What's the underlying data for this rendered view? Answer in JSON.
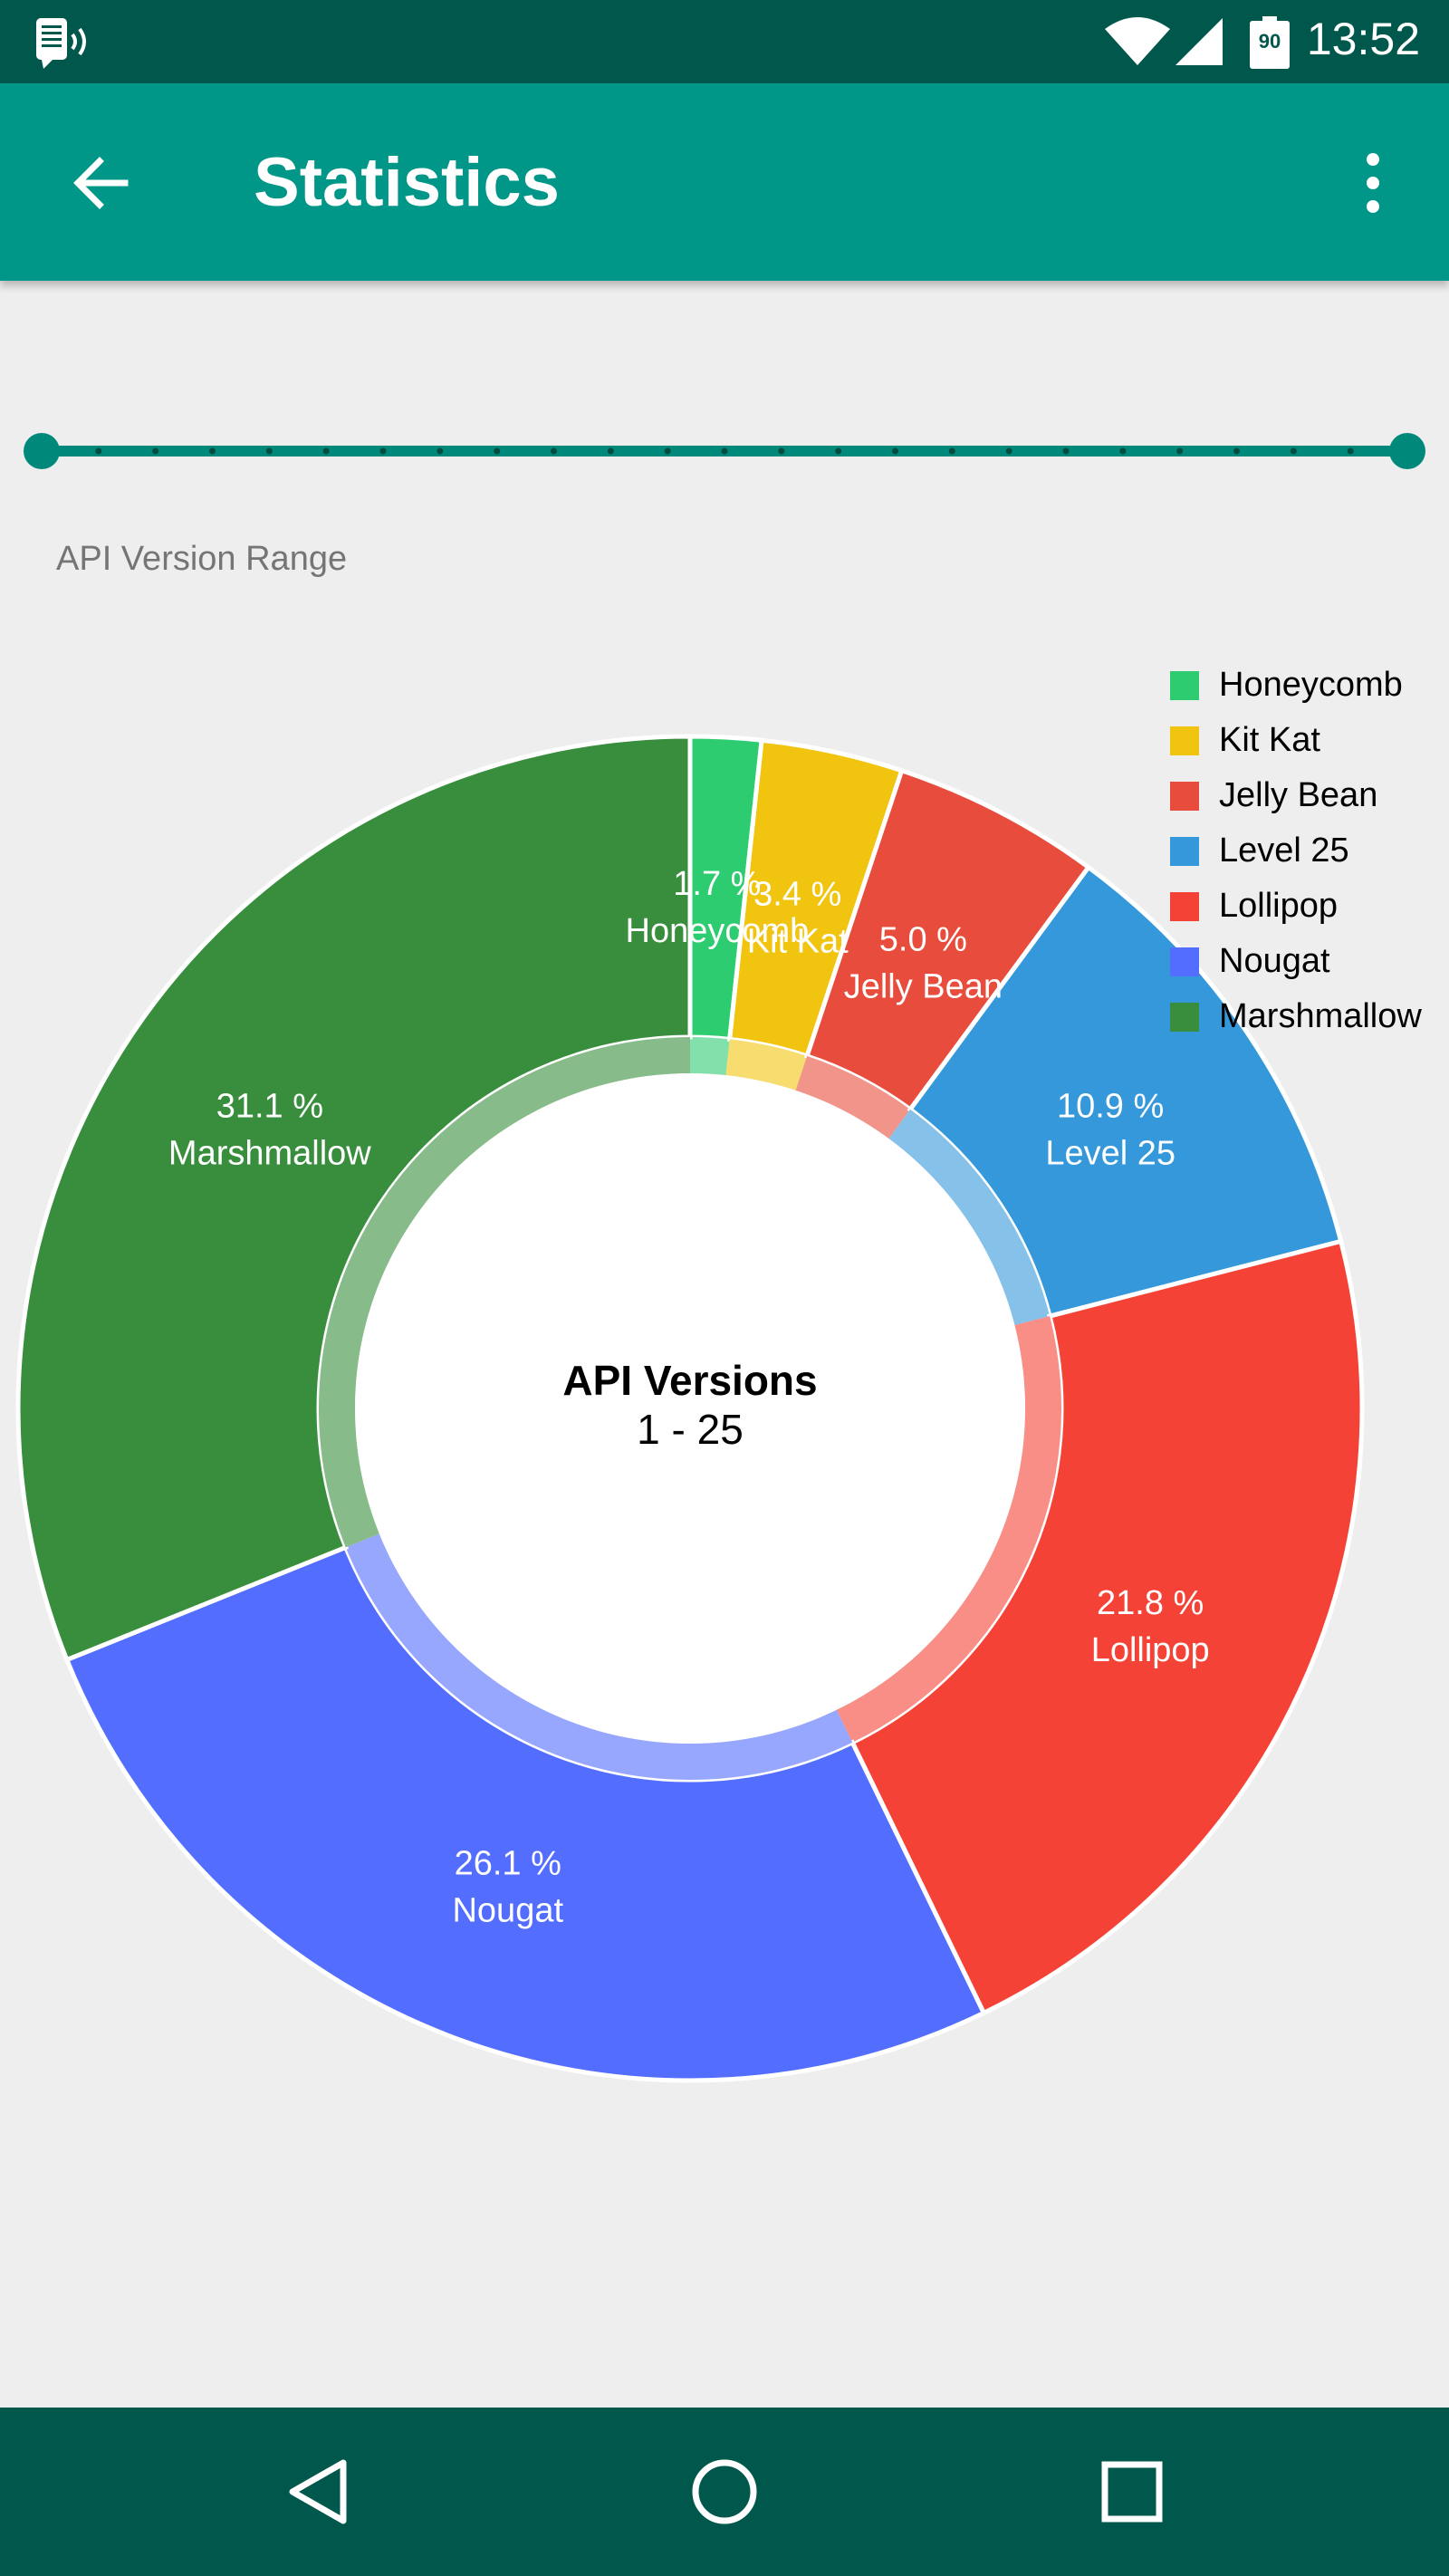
{
  "status_bar": {
    "time": "13:52",
    "battery_level": "90",
    "icons": [
      "notification-icon",
      "wifi-icon",
      "signal-icon",
      "battery-icon"
    ]
  },
  "app_bar": {
    "title": "Statistics",
    "back_icon": "arrow-left-icon",
    "menu_icon": "more-vert-icon",
    "color": "#009688"
  },
  "range_slider": {
    "label": "API Version Range",
    "min": 1,
    "max": 25,
    "selected_start": 1,
    "selected_end": 25,
    "step_count": 24,
    "color": "#00897b"
  },
  "chart_data": {
    "type": "pie",
    "style": "donut",
    "center_title": "API Versions",
    "center_subtitle": "1 - 25",
    "legend_position": "top-right",
    "slices": [
      {
        "name": "Honeycomb",
        "value": 1.7,
        "label": "1.7 %",
        "color": "#2ecc71"
      },
      {
        "name": "Kit Kat",
        "value": 3.4,
        "label": "3.4 %",
        "color": "#f1c40f"
      },
      {
        "name": "Jelly Bean",
        "value": 5.0,
        "label": "5.0 %",
        "color": "#e74c3c"
      },
      {
        "name": "Level 25",
        "value": 10.9,
        "label": "10.9 %",
        "color": "#3498db"
      },
      {
        "name": "Lollipop",
        "value": 21.8,
        "label": "21.8 %",
        "color": "#f44336"
      },
      {
        "name": "Nougat",
        "value": 26.1,
        "label": "26.1 %",
        "color": "#536dfe"
      },
      {
        "name": "Marshmallow",
        "value": 31.1,
        "label": "31.1 %",
        "color": "#388e3c"
      }
    ]
  },
  "nav_bar": {
    "icons": [
      "nav-back-icon",
      "nav-home-icon",
      "nav-recents-icon"
    ]
  }
}
